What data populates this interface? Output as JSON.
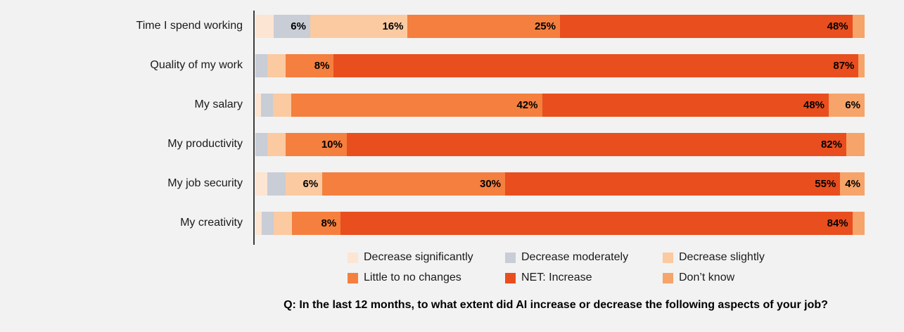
{
  "page": {
    "background_color": "#f2f2f2",
    "axis_line_color": "#3c3c3c",
    "text_color": "#1a1a1a"
  },
  "chart_data": {
    "type": "bar",
    "orientation": "horizontal",
    "stacked": true,
    "unit": "%",
    "categories": [
      "Time I spend working",
      "Quality of my work",
      "My salary",
      "My productivity",
      "My job security",
      "My creativity"
    ],
    "series": [
      {
        "name": "Decrease significantly",
        "color": "#fce5d2",
        "values": [
          3,
          0,
          1,
          0,
          2,
          1
        ]
      },
      {
        "name": "Decrease moderately",
        "color": "#c8cdd6",
        "values": [
          6,
          2,
          2,
          2,
          3,
          2
        ]
      },
      {
        "name": "Decrease slightly",
        "color": "#fbcaa1",
        "values": [
          16,
          3,
          3,
          3,
          6,
          3
        ]
      },
      {
        "name": "Little to no changes",
        "color": "#f47f3e",
        "values": [
          25,
          8,
          42,
          10,
          30,
          8
        ]
      },
      {
        "name": "NET: Increase",
        "color": "#e94e1e",
        "values": [
          48,
          87,
          48,
          82,
          55,
          84
        ]
      },
      {
        "name": "Don’t know",
        "color": "#f6a469",
        "values": [
          2,
          1,
          6,
          3,
          4,
          2
        ]
      }
    ],
    "data_labels_shown": [
      [
        "6%",
        "16%",
        "25%",
        "48%"
      ],
      [
        "8%",
        "87%"
      ],
      [
        "42%",
        "48%",
        "6%"
      ],
      [
        "10%",
        "82%"
      ],
      [
        "6%",
        "30%",
        "55%",
        "4%"
      ],
      [
        "8%",
        "84%"
      ]
    ],
    "data_label_threshold": 4,
    "legend_position": "bottom",
    "question": "Q: In the last 12 months, to what extent did AI increase or decrease the following aspects of your job?"
  }
}
